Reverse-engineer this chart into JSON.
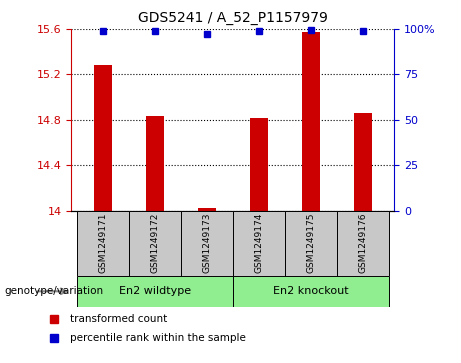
{
  "title": "GDS5241 / A_52_P1157979",
  "samples": [
    "GSM1249171",
    "GSM1249172",
    "GSM1249173",
    "GSM1249174",
    "GSM1249175",
    "GSM1249176"
  ],
  "transformed_counts": [
    15.28,
    14.83,
    14.02,
    14.82,
    15.57,
    14.86
  ],
  "percentile_ranks": [
    99,
    99,
    97,
    99,
    99.5,
    99
  ],
  "ylim_left": [
    14.0,
    15.6
  ],
  "ylim_right": [
    0,
    100
  ],
  "yticks_left": [
    14,
    14.4,
    14.8,
    15.2,
    15.6
  ],
  "ytick_labels_left": [
    "14",
    "14.4",
    "14.8",
    "15.2",
    "15.6"
  ],
  "yticks_right": [
    0,
    25,
    50,
    75,
    100
  ],
  "ytick_labels_right": [
    "0",
    "25",
    "50",
    "75",
    "100%"
  ],
  "groups": [
    {
      "label": "En2 wildtype",
      "samples_idx": [
        0,
        1,
        2
      ],
      "color": "#90EE90"
    },
    {
      "label": "En2 knockout",
      "samples_idx": [
        3,
        4,
        5
      ],
      "color": "#90EE90"
    }
  ],
  "group_label": "genotype/variation",
  "bar_color": "#cc0000",
  "dot_color": "#0000cc",
  "sample_box_color": "#c8c8c8",
  "left_axis_color": "#cc0000",
  "right_axis_color": "#0000cc",
  "legend_items": [
    {
      "color": "#cc0000",
      "label": "transformed count"
    },
    {
      "color": "#0000cc",
      "label": "percentile rank within the sample"
    }
  ]
}
